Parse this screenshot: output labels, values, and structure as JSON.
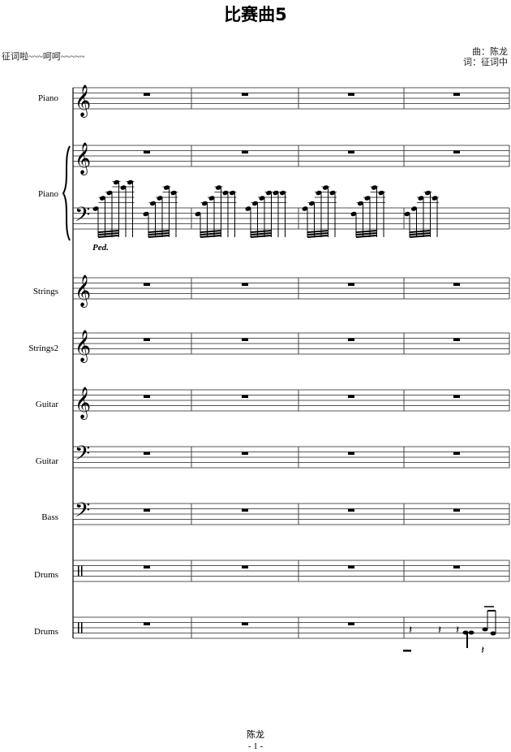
{
  "score": {
    "title": "比赛曲5",
    "subtitle": "征词啦~~~呵呵~~~~~",
    "composer": "曲：陈龙",
    "lyricist": "词：征词中",
    "footer_name": "陈龙",
    "page_number": "- 1 -",
    "measures": 4,
    "pedal_mark": "Ped."
  },
  "staves": [
    {
      "label": "Piano",
      "clef": "treble"
    },
    {
      "label": "Piano",
      "clef": "grand"
    },
    {
      "label": "Strings",
      "clef": "treble"
    },
    {
      "label": "Strings2",
      "clef": "treble"
    },
    {
      "label": "Guitar",
      "clef": "treble"
    },
    {
      "label": "Guitar",
      "clef": "bass"
    },
    {
      "label": "Bass",
      "clef": "bass"
    },
    {
      "label": "Drums",
      "clef": "percussion"
    },
    {
      "label": "Drums",
      "clef": "percussion"
    }
  ]
}
